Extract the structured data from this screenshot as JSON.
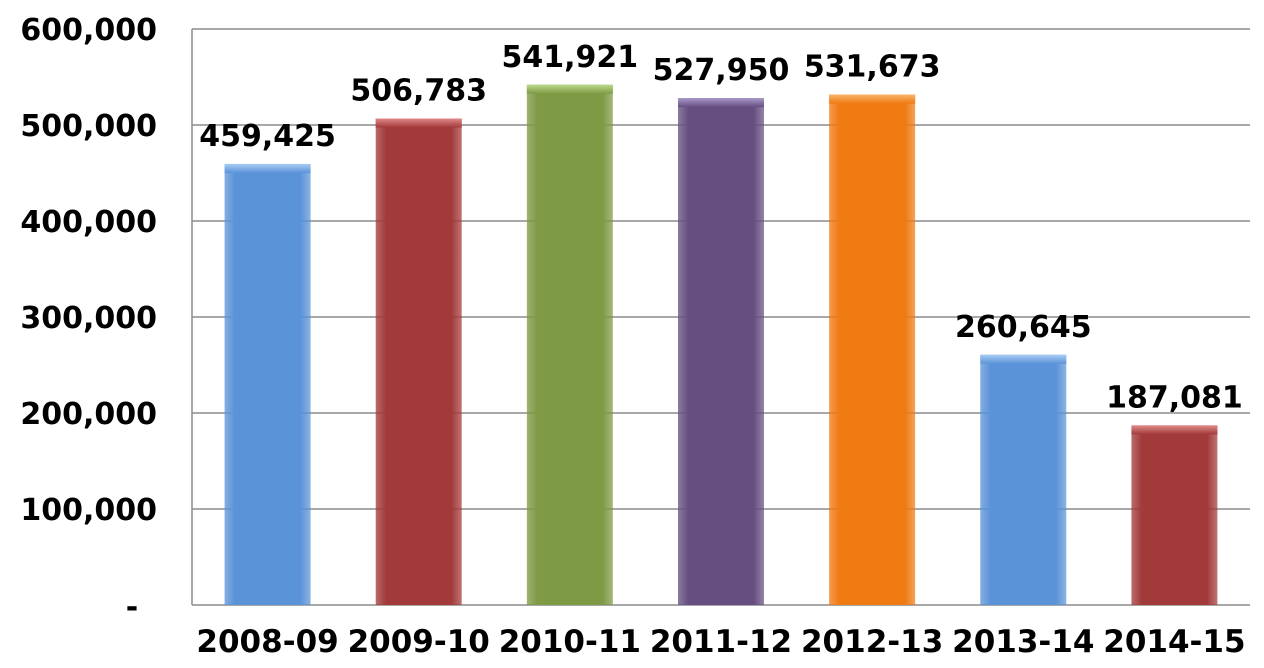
{
  "chart_data": {
    "type": "bar",
    "title": "",
    "xlabel": "",
    "ylabel": "",
    "categories": [
      "2008-09",
      "2009-10",
      "2010-11",
      "2011-12",
      "2012-13",
      "2013-14",
      "2014-15"
    ],
    "values": [
      459425,
      506783,
      541921,
      527950,
      531673,
      260645,
      187081
    ],
    "value_labels": [
      "459,425",
      "506,783",
      "541,921",
      "527,950",
      "531,673",
      "260,645",
      "187,081"
    ],
    "ylim": [
      0,
      600000
    ],
    "y_ticks": [
      0,
      100000,
      200000,
      300000,
      400000,
      500000,
      600000
    ],
    "y_tick_labels": [
      "-",
      "100,000",
      "200,000",
      "300,000",
      "400,000",
      "500,000",
      "600,000"
    ],
    "grid": true,
    "legend": "none",
    "bar_colors": [
      "#5b93d8",
      "#a23a3a",
      "#7e9a45",
      "#664f80",
      "#ef7a12",
      "#5b93d8",
      "#a23a3a"
    ],
    "bar_highlight_colors": [
      "#a8ccf4",
      "#e08a8a",
      "#bcd98a",
      "#a898c8",
      "#f7b46a",
      "#a8ccf4",
      "#e08a8a"
    ]
  }
}
